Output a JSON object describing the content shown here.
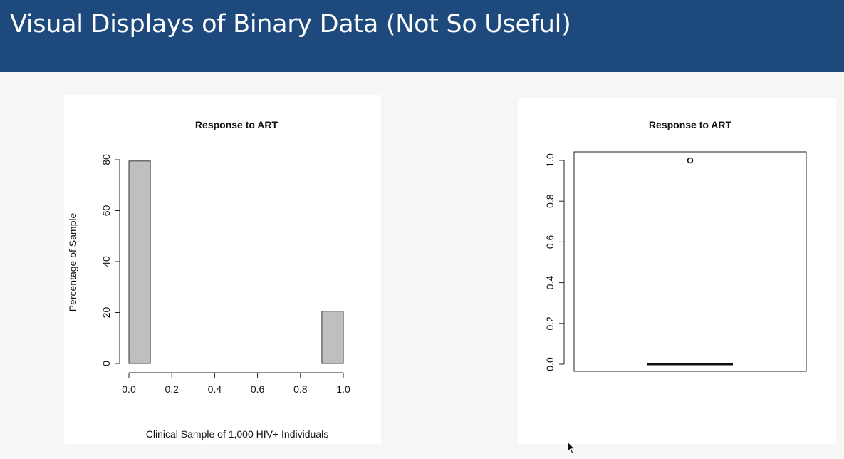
{
  "slide": {
    "title": "Visual Displays of Binary Data (Not So Useful)",
    "header_color": "#1e497c"
  },
  "chart_data": [
    {
      "type": "histogram",
      "title": "Response to ART",
      "xlabel": "Clinical Sample of 1,000 HIV+ Individuals",
      "ylabel": "Percentage of Sample",
      "xlim": [
        0,
        1
      ],
      "ylim": [
        0,
        80
      ],
      "x_ticks": [
        0.0,
        0.2,
        0.4,
        0.6,
        0.8,
        1.0
      ],
      "x_tick_labels": [
        "0.0",
        "0.2",
        "0.4",
        "0.6",
        "0.8",
        "1.0"
      ],
      "y_ticks": [
        0,
        20,
        40,
        60,
        80
      ],
      "y_tick_labels": [
        "0",
        "20",
        "40",
        "60",
        "80"
      ],
      "bins": [
        {
          "start": 0.0,
          "end": 0.1,
          "value": 79.5
        },
        {
          "start": 0.1,
          "end": 0.2,
          "value": 0
        },
        {
          "start": 0.2,
          "end": 0.3,
          "value": 0
        },
        {
          "start": 0.3,
          "end": 0.4,
          "value": 0
        },
        {
          "start": 0.4,
          "end": 0.5,
          "value": 0
        },
        {
          "start": 0.5,
          "end": 0.6,
          "value": 0
        },
        {
          "start": 0.6,
          "end": 0.7,
          "value": 0
        },
        {
          "start": 0.7,
          "end": 0.8,
          "value": 0
        },
        {
          "start": 0.8,
          "end": 0.9,
          "value": 0
        },
        {
          "start": 0.9,
          "end": 1.0,
          "value": 20.5
        }
      ],
      "bar_color": "#c0bfc0"
    },
    {
      "type": "boxplot",
      "title": "Response to ART",
      "ylim": [
        0,
        1
      ],
      "y_ticks": [
        0.0,
        0.2,
        0.4,
        0.6,
        0.8,
        1.0
      ],
      "y_tick_labels": [
        "0.0",
        "0.2",
        "0.4",
        "0.6",
        "0.8",
        "1.0"
      ],
      "median": 0,
      "q1": 0,
      "q3": 0,
      "whisker_low": 0,
      "whisker_high": 0,
      "outliers": [
        1.0
      ]
    }
  ]
}
